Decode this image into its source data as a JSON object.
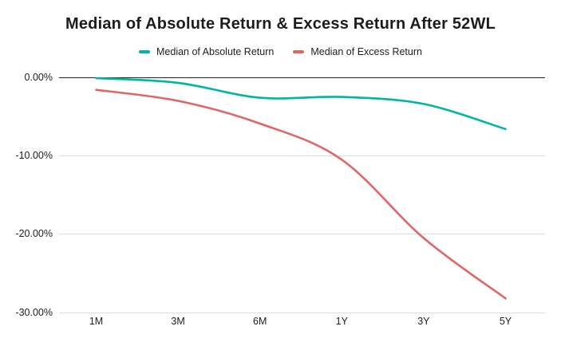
{
  "chart_data": {
    "type": "line",
    "title": "Median of Absolute Return & Excess Return After 52WL",
    "categories": [
      "1M",
      "3M",
      "6M",
      "1Y",
      "3Y",
      "5Y"
    ],
    "series": [
      {
        "name": "Median of Absolute Return",
        "color": "#00b5a4",
        "values": [
          -0.1,
          -0.7,
          -2.6,
          -2.5,
          -3.4,
          -6.6
        ]
      },
      {
        "name": "Median of Excess Return",
        "color": "#e06666",
        "values": [
          -1.6,
          -3.0,
          -5.9,
          -10.5,
          -20.5,
          -28.2
        ]
      }
    ],
    "y_ticks": [
      {
        "label": "0.00%",
        "value": 0
      },
      {
        "label": "-10.00%",
        "value": -10
      },
      {
        "label": "-20.00%",
        "value": -20
      },
      {
        "label": "-30.00%",
        "value": -30
      }
    ],
    "ylim": [
      -30,
      0
    ],
    "y_format": "percent",
    "grid": true,
    "legend_position": "top",
    "line_style": "smooth"
  }
}
